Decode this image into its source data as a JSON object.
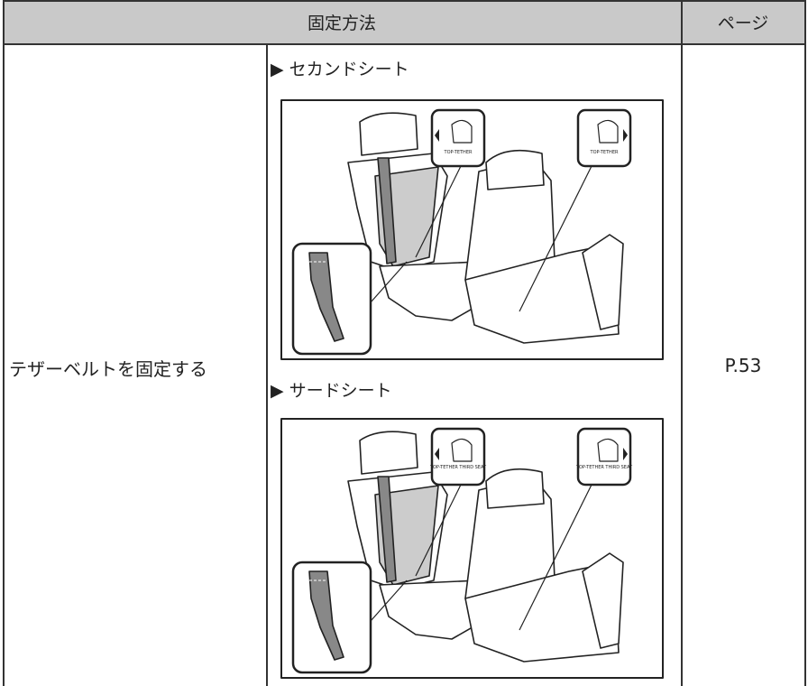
{
  "table": {
    "header": [
      "固定方法",
      "ページ"
    ],
    "rows": [
      {
        "method": "テザーベルトを固定する",
        "page": "P.53",
        "figures": [
          {
            "caption": "▶ セカンドシート",
            "icon_labels": [
              "TOP-TETHER",
              "TOP-TETHER"
            ]
          },
          {
            "caption": "▶ サードシート",
            "icon_labels": [
              "TOP-TETHER THIRD SEAT",
              "TOP-TETHER THIRD SEAT"
            ]
          }
        ]
      }
    ]
  }
}
